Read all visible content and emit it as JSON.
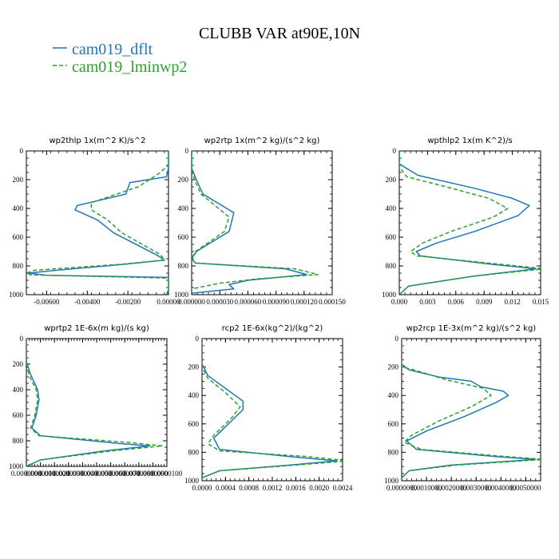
{
  "figure": {
    "title": "CLUBB VAR at90E,10N",
    "legend": [
      {
        "label": "cam019_dflt",
        "color": "#1f77b4",
        "dash": "solid"
      },
      {
        "label": "cam019_lminwp2",
        "color": "#2ca02c",
        "dash": "dashed"
      }
    ]
  },
  "chart_data": [
    {
      "type": "line",
      "title": "wp2thlp   1x(m^2 K)/s^2",
      "xlim": [
        -0.007,
        0.0
      ],
      "xticks": [
        "-0.00600",
        "-0.00400",
        "-0.00200",
        "0.00000"
      ],
      "xtick_values": [
        -0.006,
        -0.004,
        -0.002,
        0.0
      ],
      "ylim": [
        1000,
        0
      ],
      "yticks": [
        "0",
        "200",
        "400",
        "600",
        "800",
        "1000"
      ],
      "series": [
        {
          "name": "cam019_dflt",
          "points": [
            [
              0.0,
              0
            ],
            [
              0.0,
              120
            ],
            [
              -0.0001,
              180
            ],
            [
              -0.0019,
              220
            ],
            [
              -0.0021,
              300
            ],
            [
              -0.0045,
              380
            ],
            [
              -0.0046,
              410
            ],
            [
              -0.0035,
              480
            ],
            [
              -0.0027,
              570
            ],
            [
              -0.0005,
              730
            ],
            [
              -0.0002,
              760
            ],
            [
              -0.0023,
              790
            ],
            [
              -0.0055,
              830
            ],
            [
              -0.0069,
              850
            ],
            [
              -0.006,
              865
            ],
            [
              0.0,
              880
            ],
            [
              0.0,
              980
            ],
            [
              -0.0001,
              1000
            ]
          ]
        },
        {
          "name": "cam019_lminwp2",
          "points": [
            [
              0.0,
              0
            ],
            [
              0.0,
              100
            ],
            [
              -0.0005,
              160
            ],
            [
              -0.0015,
              250
            ],
            [
              -0.0038,
              360
            ],
            [
              -0.0038,
              410
            ],
            [
              -0.003,
              480
            ],
            [
              -0.0023,
              570
            ],
            [
              -0.0004,
              720
            ],
            [
              -0.0002,
              760
            ],
            [
              -0.0025,
              790
            ],
            [
              -0.0066,
              830
            ],
            [
              -0.007,
              850
            ],
            [
              -0.0068,
              862
            ],
            [
              0.0,
              885
            ],
            [
              0.0,
              960
            ],
            [
              -0.0001,
              1000
            ]
          ]
        }
      ]
    },
    {
      "type": "line",
      "title": "wp2rtp   1x(m^2 kg)/(s^2 kg)",
      "xlim": [
        0.0,
        0.00015
      ],
      "xticks": [
        "0.000000",
        "0.000030",
        "0.000060",
        "0.000090",
        "0.000120",
        "0.000150"
      ],
      "xtick_values": [
        0.0,
        3e-05,
        6e-05,
        9e-05,
        0.00012,
        0.00015
      ],
      "ylim": [
        1000,
        0
      ],
      "yticks": [
        "0",
        "200",
        "400",
        "600",
        "800",
        "1000"
      ],
      "series": [
        {
          "name": "cam019_dflt",
          "points": [
            [
              0.0,
              0
            ],
            [
              0.0,
              120
            ],
            [
              5e-06,
              200
            ],
            [
              1.2e-05,
              300
            ],
            [
              4.5e-05,
              430
            ],
            [
              4e-05,
              560
            ],
            [
              5e-06,
              700
            ],
            [
              0.0,
              750
            ],
            [
              4e-06,
              780
            ],
            [
              0.0001,
              820
            ],
            [
              0.000123,
              860
            ],
            [
              6e-05,
              900
            ],
            [
              4e-05,
              930
            ],
            [
              4.5e-05,
              960
            ],
            [
              0.0,
              990
            ]
          ]
        },
        {
          "name": "cam019_lminwp2",
          "points": [
            [
              0.0,
              0
            ],
            [
              0.0,
              120
            ],
            [
              3e-06,
              200
            ],
            [
              1e-05,
              300
            ],
            [
              4e-05,
              460
            ],
            [
              3.5e-05,
              560
            ],
            [
              4e-06,
              700
            ],
            [
              0.0,
              750
            ],
            [
              4e-06,
              780
            ],
            [
              0.00011,
              820
            ],
            [
              0.000135,
              860
            ],
            [
              7e-05,
              890
            ],
            [
              3e-05,
              920
            ],
            [
              0.0,
              960
            ]
          ]
        }
      ]
    },
    {
      "type": "line",
      "title": "wpthlp2   1x(m K^2)/s",
      "xlim": [
        0.0,
        0.015
      ],
      "xticks": [
        "0.000",
        "0.003",
        "0.006",
        "0.009",
        "0.012",
        "0.015"
      ],
      "xtick_values": [
        0.0,
        0.003,
        0.006,
        0.009,
        0.012,
        0.015
      ],
      "ylim": [
        1000,
        0
      ],
      "yticks": [
        "0",
        "200",
        "400",
        "600",
        "800",
        "1000"
      ],
      "series": [
        {
          "name": "cam019_dflt",
          "points": [
            [
              0.0,
              0
            ],
            [
              0.0,
              90
            ],
            [
              0.002,
              170
            ],
            [
              0.008,
              260
            ],
            [
              0.012,
              330
            ],
            [
              0.0138,
              380
            ],
            [
              0.0126,
              450
            ],
            [
              0.008,
              560
            ],
            [
              0.004,
              640
            ],
            [
              0.0018,
              700
            ],
            [
              0.0022,
              730
            ],
            [
              0.01,
              790
            ],
            [
              0.0145,
              820
            ],
            [
              0.008,
              870
            ],
            [
              0.001,
              940
            ],
            [
              0.0,
              1000
            ]
          ]
        },
        {
          "name": "cam019_lminwp2",
          "points": [
            [
              0.0,
              0
            ],
            [
              0.0,
              110
            ],
            [
              0.0008,
              180
            ],
            [
              0.005,
              250
            ],
            [
              0.0095,
              330
            ],
            [
              0.0115,
              400
            ],
            [
              0.01,
              460
            ],
            [
              0.0055,
              560
            ],
            [
              0.0025,
              640
            ],
            [
              0.0012,
              700
            ],
            [
              0.0018,
              730
            ],
            [
              0.011,
              790
            ],
            [
              0.0155,
              820
            ],
            [
              0.008,
              870
            ],
            [
              0.001,
              940
            ],
            [
              0.0,
              1000
            ]
          ]
        }
      ]
    },
    {
      "type": "line",
      "title": "wprtp2   1E-6x(m kg)/(s kg)",
      "xlim": [
        0.0,
        1e-05
      ],
      "xticks": [
        "0.0000000",
        "0.0000010",
        "0.0000020",
        "0.0000030",
        "0.0000040",
        "0.0000050",
        "0.0000060",
        "0.0000070",
        "0.0000080",
        "0.0000090",
        "0.0000100"
      ],
      "xtick_values": [
        0.0,
        1e-06,
        2e-06,
        3e-06,
        4e-06,
        5e-06,
        6e-06,
        7e-06,
        8e-06,
        9e-06,
        1e-05
      ],
      "ylim": [
        1000,
        0
      ],
      "yticks": [
        "0",
        "200",
        "400",
        "600",
        "800",
        "1000"
      ],
      "series": [
        {
          "name": "cam019_dflt",
          "points": [
            [
              0.0,
              0
            ],
            [
              0.0,
              180
            ],
            [
              3e-07,
              280
            ],
            [
              8e-07,
              400
            ],
            [
              9e-07,
              480
            ],
            [
              7e-07,
              600
            ],
            [
              4e-07,
              700
            ],
            [
              1e-06,
              760
            ],
            [
              6.5e-06,
              820
            ],
            [
              8.8e-06,
              840
            ],
            [
              5.5e-06,
              880
            ],
            [
              1e-06,
              950
            ],
            [
              0.0,
              1000
            ]
          ]
        },
        {
          "name": "cam019_lminwp2",
          "points": [
            [
              0.0,
              0
            ],
            [
              0.0,
              190
            ],
            [
              2e-07,
              290
            ],
            [
              7e-07,
              400
            ],
            [
              8e-07,
              480
            ],
            [
              6e-07,
              600
            ],
            [
              3e-07,
              700
            ],
            [
              9e-07,
              760
            ],
            [
              7.5e-06,
              815
            ],
            [
              9.7e-06,
              840
            ],
            [
              6e-06,
              880
            ],
            [
              1e-06,
              950
            ],
            [
              0.0,
              1000
            ]
          ]
        }
      ]
    },
    {
      "type": "line",
      "title": "rcp2   1E-6x(kg^2)/(kg^2)",
      "xlim": [
        0.0,
        0.0024
      ],
      "xticks": [
        "0.0000",
        "0.0004",
        "0.0008",
        "0.0012",
        "0.0016",
        "0.0020",
        "0.0024"
      ],
      "xtick_values": [
        0.0,
        0.0004,
        0.0008,
        0.0012,
        0.0016,
        0.002,
        0.0024
      ],
      "ylim": [
        1000,
        0
      ],
      "yticks": [
        "0",
        "200",
        "400",
        "600",
        "800",
        "1000"
      ],
      "series": [
        {
          "name": "cam019_dflt",
          "points": [
            [
              0.0,
              0
            ],
            [
              0.0,
              180
            ],
            [
              0.0001,
              260
            ],
            [
              0.0005,
              380
            ],
            [
              0.0007,
              440
            ],
            [
              0.0007,
              500
            ],
            [
              0.0004,
              620
            ],
            [
              0.0002,
              700
            ],
            [
              0.0003,
              780
            ],
            [
              0.0015,
              830
            ],
            [
              0.0023,
              860
            ],
            [
              0.0015,
              890
            ],
            [
              0.0003,
              930
            ],
            [
              0.0,
              980
            ]
          ]
        },
        {
          "name": "cam019_lminwp2",
          "points": [
            [
              0.0,
              0
            ],
            [
              0.0,
              200
            ],
            [
              0.0001,
              280
            ],
            [
              0.0004,
              380
            ],
            [
              0.00065,
              480
            ],
            [
              0.0005,
              560
            ],
            [
              0.0002,
              680
            ],
            [
              0.0001,
              740
            ],
            [
              0.0003,
              790
            ],
            [
              0.0018,
              830
            ],
            [
              0.0025,
              860
            ],
            [
              0.0016,
              890
            ],
            [
              0.0003,
              930
            ],
            [
              0.0,
              980
            ]
          ]
        }
      ]
    },
    {
      "type": "line",
      "title": "wp2rcp   1E-3x(m^2 kg)/(s^2 kg)",
      "xlim": [
        0.0,
        0.0056
      ],
      "xticks": [
        "0.0000000",
        "0.0010000",
        "0.0020000",
        "0.0030000",
        "0.0040000",
        "0.0050000"
      ],
      "xtick_values": [
        0.0,
        0.001,
        0.002,
        0.003,
        0.004,
        0.005
      ],
      "ylim": [
        1000,
        0
      ],
      "yticks": [
        "0",
        "200",
        "400",
        "600",
        "800",
        "1000"
      ],
      "series": [
        {
          "name": "cam019_dflt",
          "points": [
            [
              0.0,
              0
            ],
            [
              0.0,
              180
            ],
            [
              0.0003,
              220
            ],
            [
              0.0015,
              270
            ],
            [
              0.0028,
              300
            ],
            [
              0.0032,
              340
            ],
            [
              0.0041,
              370
            ],
            [
              0.0043,
              400
            ],
            [
              0.0038,
              450
            ],
            [
              0.0025,
              550
            ],
            [
              0.001,
              650
            ],
            [
              0.0002,
              720
            ],
            [
              0.0006,
              780
            ],
            [
              0.0038,
              830
            ],
            [
              0.0054,
              850
            ],
            [
              0.002,
              890
            ],
            [
              0.0003,
              930
            ],
            [
              0.0,
              980
            ]
          ]
        },
        {
          "name": "cam019_lminwp2",
          "points": [
            [
              0.0,
              0
            ],
            [
              0.0,
              200
            ],
            [
              0.0005,
              220
            ],
            [
              0.0018,
              290
            ],
            [
              0.0033,
              350
            ],
            [
              0.0036,
              400
            ],
            [
              0.0028,
              480
            ],
            [
              0.0015,
              580
            ],
            [
              0.0004,
              680
            ],
            [
              0.0001,
              730
            ],
            [
              0.0008,
              780
            ],
            [
              0.0042,
              830
            ],
            [
              0.0058,
              850
            ],
            [
              0.0022,
              890
            ],
            [
              0.0003,
              930
            ],
            [
              0.0,
              980
            ]
          ]
        }
      ]
    }
  ]
}
